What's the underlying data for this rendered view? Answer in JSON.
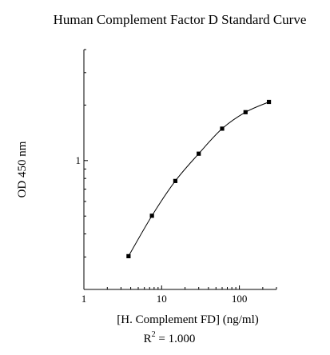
{
  "chart_data": {
    "type": "scatter",
    "title": "Human Complement Factor D Standard Curve",
    "xlabel": "[H. Complement FD] (ng/ml)",
    "ylabel": "OD 450 nm",
    "xscale": "log",
    "yscale": "log",
    "xlim": [
      1,
      300
    ],
    "ylim": [
      0.2,
      4.0
    ],
    "x_ticks": [
      1,
      10,
      100
    ],
    "x_tick_labels": [
      "1",
      "10",
      "100"
    ],
    "y_ticks": [
      1
    ],
    "y_tick_labels": [
      "1"
    ],
    "grid": false,
    "fit_curve": true,
    "points": [
      {
        "x": 3.75,
        "y": 0.303
      },
      {
        "x": 7.5,
        "y": 0.502
      },
      {
        "x": 15,
        "y": 0.775
      },
      {
        "x": 30,
        "y": 1.09
      },
      {
        "x": 60,
        "y": 1.49
      },
      {
        "x": 120,
        "y": 1.83
      },
      {
        "x": 240,
        "y": 2.08
      }
    ],
    "annotation": {
      "base": "R",
      "superscript": "2",
      "text": " = 1.000"
    }
  }
}
